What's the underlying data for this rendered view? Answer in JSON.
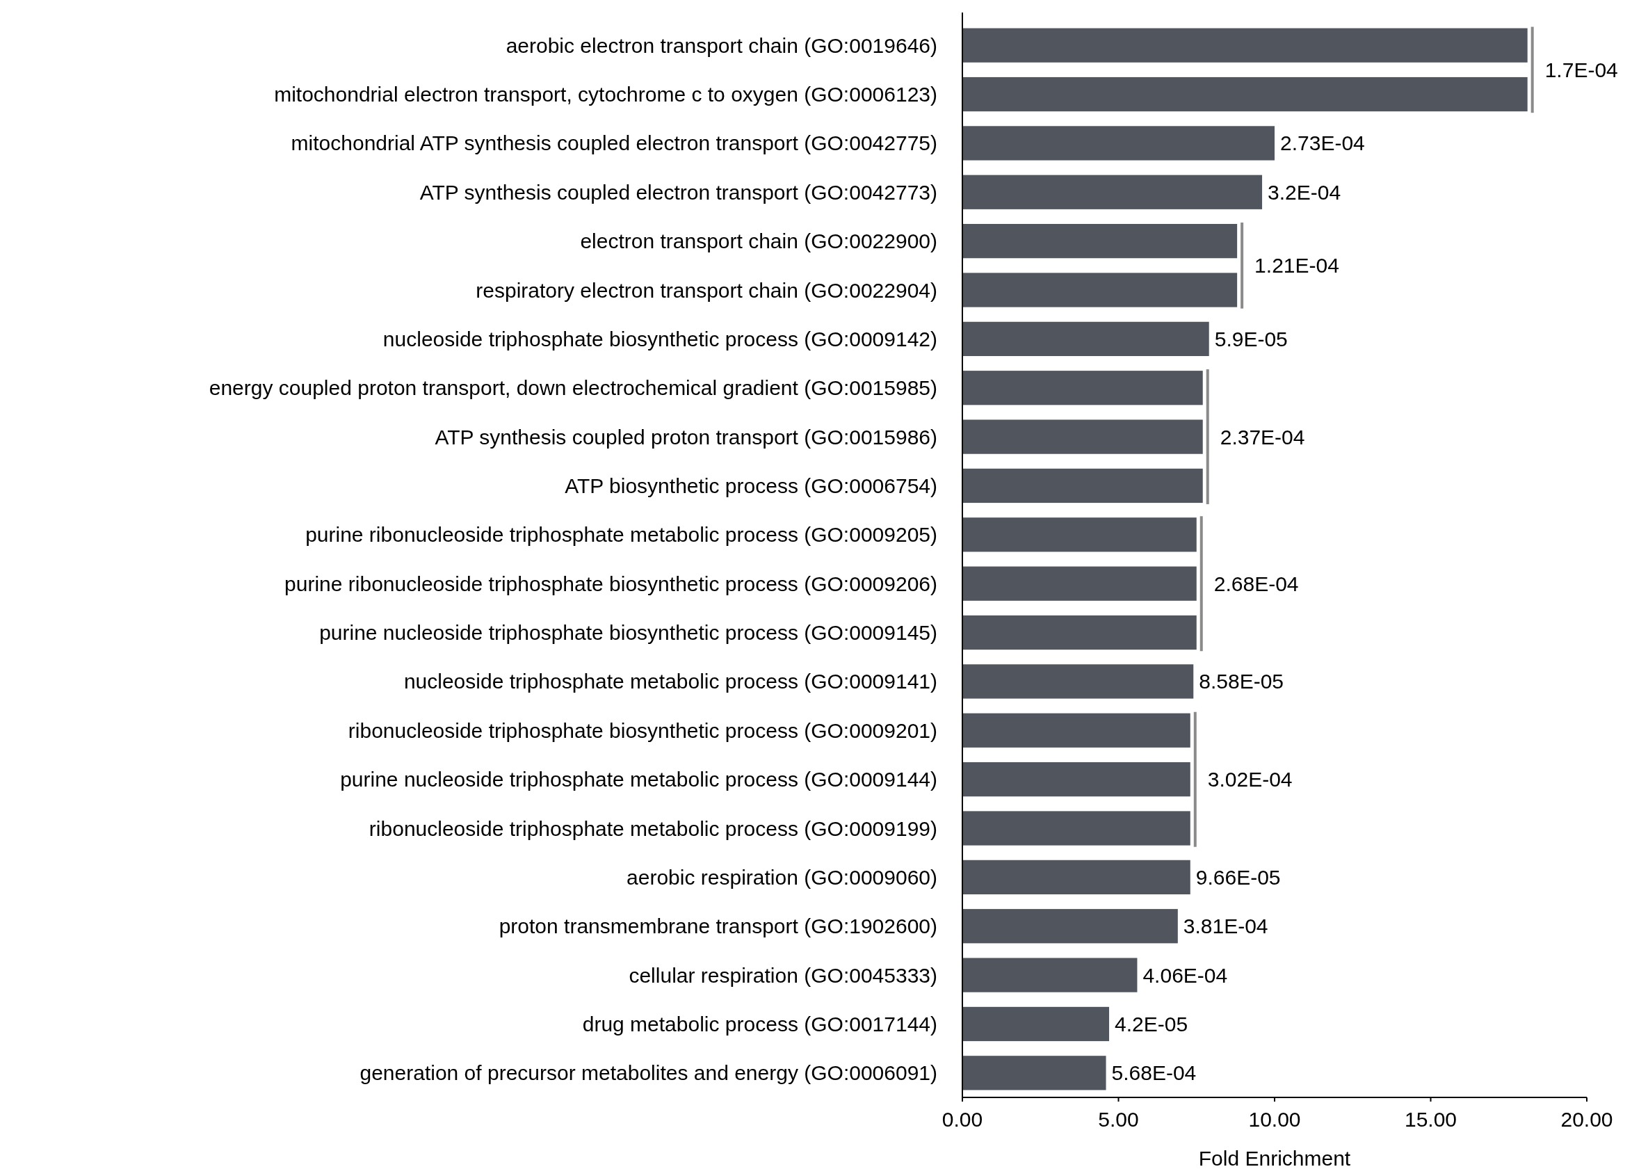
{
  "chart_data": {
    "type": "bar",
    "orientation": "horizontal",
    "xlabel": "Fold Enrichment",
    "categories": [
      "aerobic electron transport chain (GO:0019646)",
      "mitochondrial electron transport, cytochrome c to oxygen (GO:0006123)",
      "mitochondrial ATP synthesis coupled electron transport (GO:0042775)",
      "ATP synthesis coupled electron transport (GO:0042773)",
      "electron transport chain (GO:0022900)",
      "respiratory electron transport chain (GO:0022904)",
      "nucleoside triphosphate biosynthetic process (GO:0009142)",
      "energy coupled proton transport, down electrochemical gradient (GO:0015985)",
      "ATP synthesis coupled proton transport (GO:0015986)",
      "ATP biosynthetic process (GO:0006754)",
      "purine ribonucleoside triphosphate metabolic process (GO:0009205)",
      "purine ribonucleoside triphosphate biosynthetic process (GO:0009206)",
      "purine nucleoside triphosphate biosynthetic process (GO:0009145)",
      "nucleoside triphosphate metabolic process (GO:0009141)",
      "ribonucleoside triphosphate biosynthetic process (GO:0009201)",
      "purine nucleoside triphosphate metabolic process (GO:0009144)",
      "ribonucleoside triphosphate metabolic process (GO:0009199)",
      "aerobic respiration (GO:0009060)",
      "proton transmembrane transport (GO:1902600)",
      "cellular respiration (GO:0045333)",
      "drug metabolic process (GO:0017144)",
      "generation of precursor metabolites and energy (GO:0006091)"
    ],
    "values": [
      18.1,
      18.1,
      10.0,
      9.6,
      8.8,
      8.8,
      7.9,
      7.7,
      7.7,
      7.7,
      7.5,
      7.5,
      7.5,
      7.4,
      7.3,
      7.3,
      7.3,
      7.3,
      6.9,
      5.6,
      4.7,
      4.6
    ],
    "annotations": [
      {
        "text": "1.7E-04",
        "x": 18.1,
        "y": "aerobic electron transport chain (GO:0019646)"
      },
      {
        "text": "2.73E-04",
        "x": 10.0,
        "y": "mitochondrial ATP synthesis coupled electron transport (GO:0042775)"
      },
      {
        "text": "3.2E-04",
        "x": 9.6,
        "y": "ATP synthesis coupled electron transport (GO:0042773)"
      },
      {
        "text": "1.21E-04",
        "x": 8.8,
        "y": "electron transport chain (GO:0022900)"
      },
      {
        "text": "5.9E-05",
        "x": 7.9,
        "y": "nucleoside triphosphate biosynthetic process (GO:0009142)"
      },
      {
        "text": "2.37E-04",
        "x": 7.7,
        "y": "energy coupled proton transport, down electrochemical gradient (GO:0015985)"
      },
      {
        "text": "2.68E-04",
        "x": 7.5,
        "y": "purine ribonucleoside triphosphate metabolic process (GO:0009205)"
      },
      {
        "text": "8.58E-05",
        "x": 7.4,
        "y": "nucleoside triphosphate metabolic process (GO:0009141)"
      },
      {
        "text": "3.02E-04",
        "x": 7.3,
        "y": "ribonucleoside triphosphate biosynthetic process (GO:0009201)"
      },
      {
        "text": "9.66E-05",
        "x": 7.3,
        "y": "aerobic respiration (GO:0009060)"
      },
      {
        "text": "3.81E-04",
        "x": 6.9,
        "y": "proton transmembrane transport (GO:1902600)"
      },
      {
        "text": "4.06E-04",
        "x": 5.6,
        "y": "cellular respiration (GO:0045333)"
      },
      {
        "text": "4.2E-05",
        "x": 4.7,
        "y": "drug metabolic process (GO:0017144)"
      },
      {
        "text": "5.68E-04",
        "x": 4.6,
        "y": "generation of precursor metabolites and energy (GO:0006091)"
      }
    ],
    "color": "#51565e",
    "xlim": [
      0,
      20
    ],
    "xticks": [
      {
        "value": 0,
        "label": "0.00"
      },
      {
        "value": 5,
        "label": "5.00"
      },
      {
        "value": 10,
        "label": "10.00"
      },
      {
        "value": 15,
        "label": "15.00"
      },
      {
        "value": 20,
        "label": "20.00"
      }
    ],
    "grid": false
  }
}
